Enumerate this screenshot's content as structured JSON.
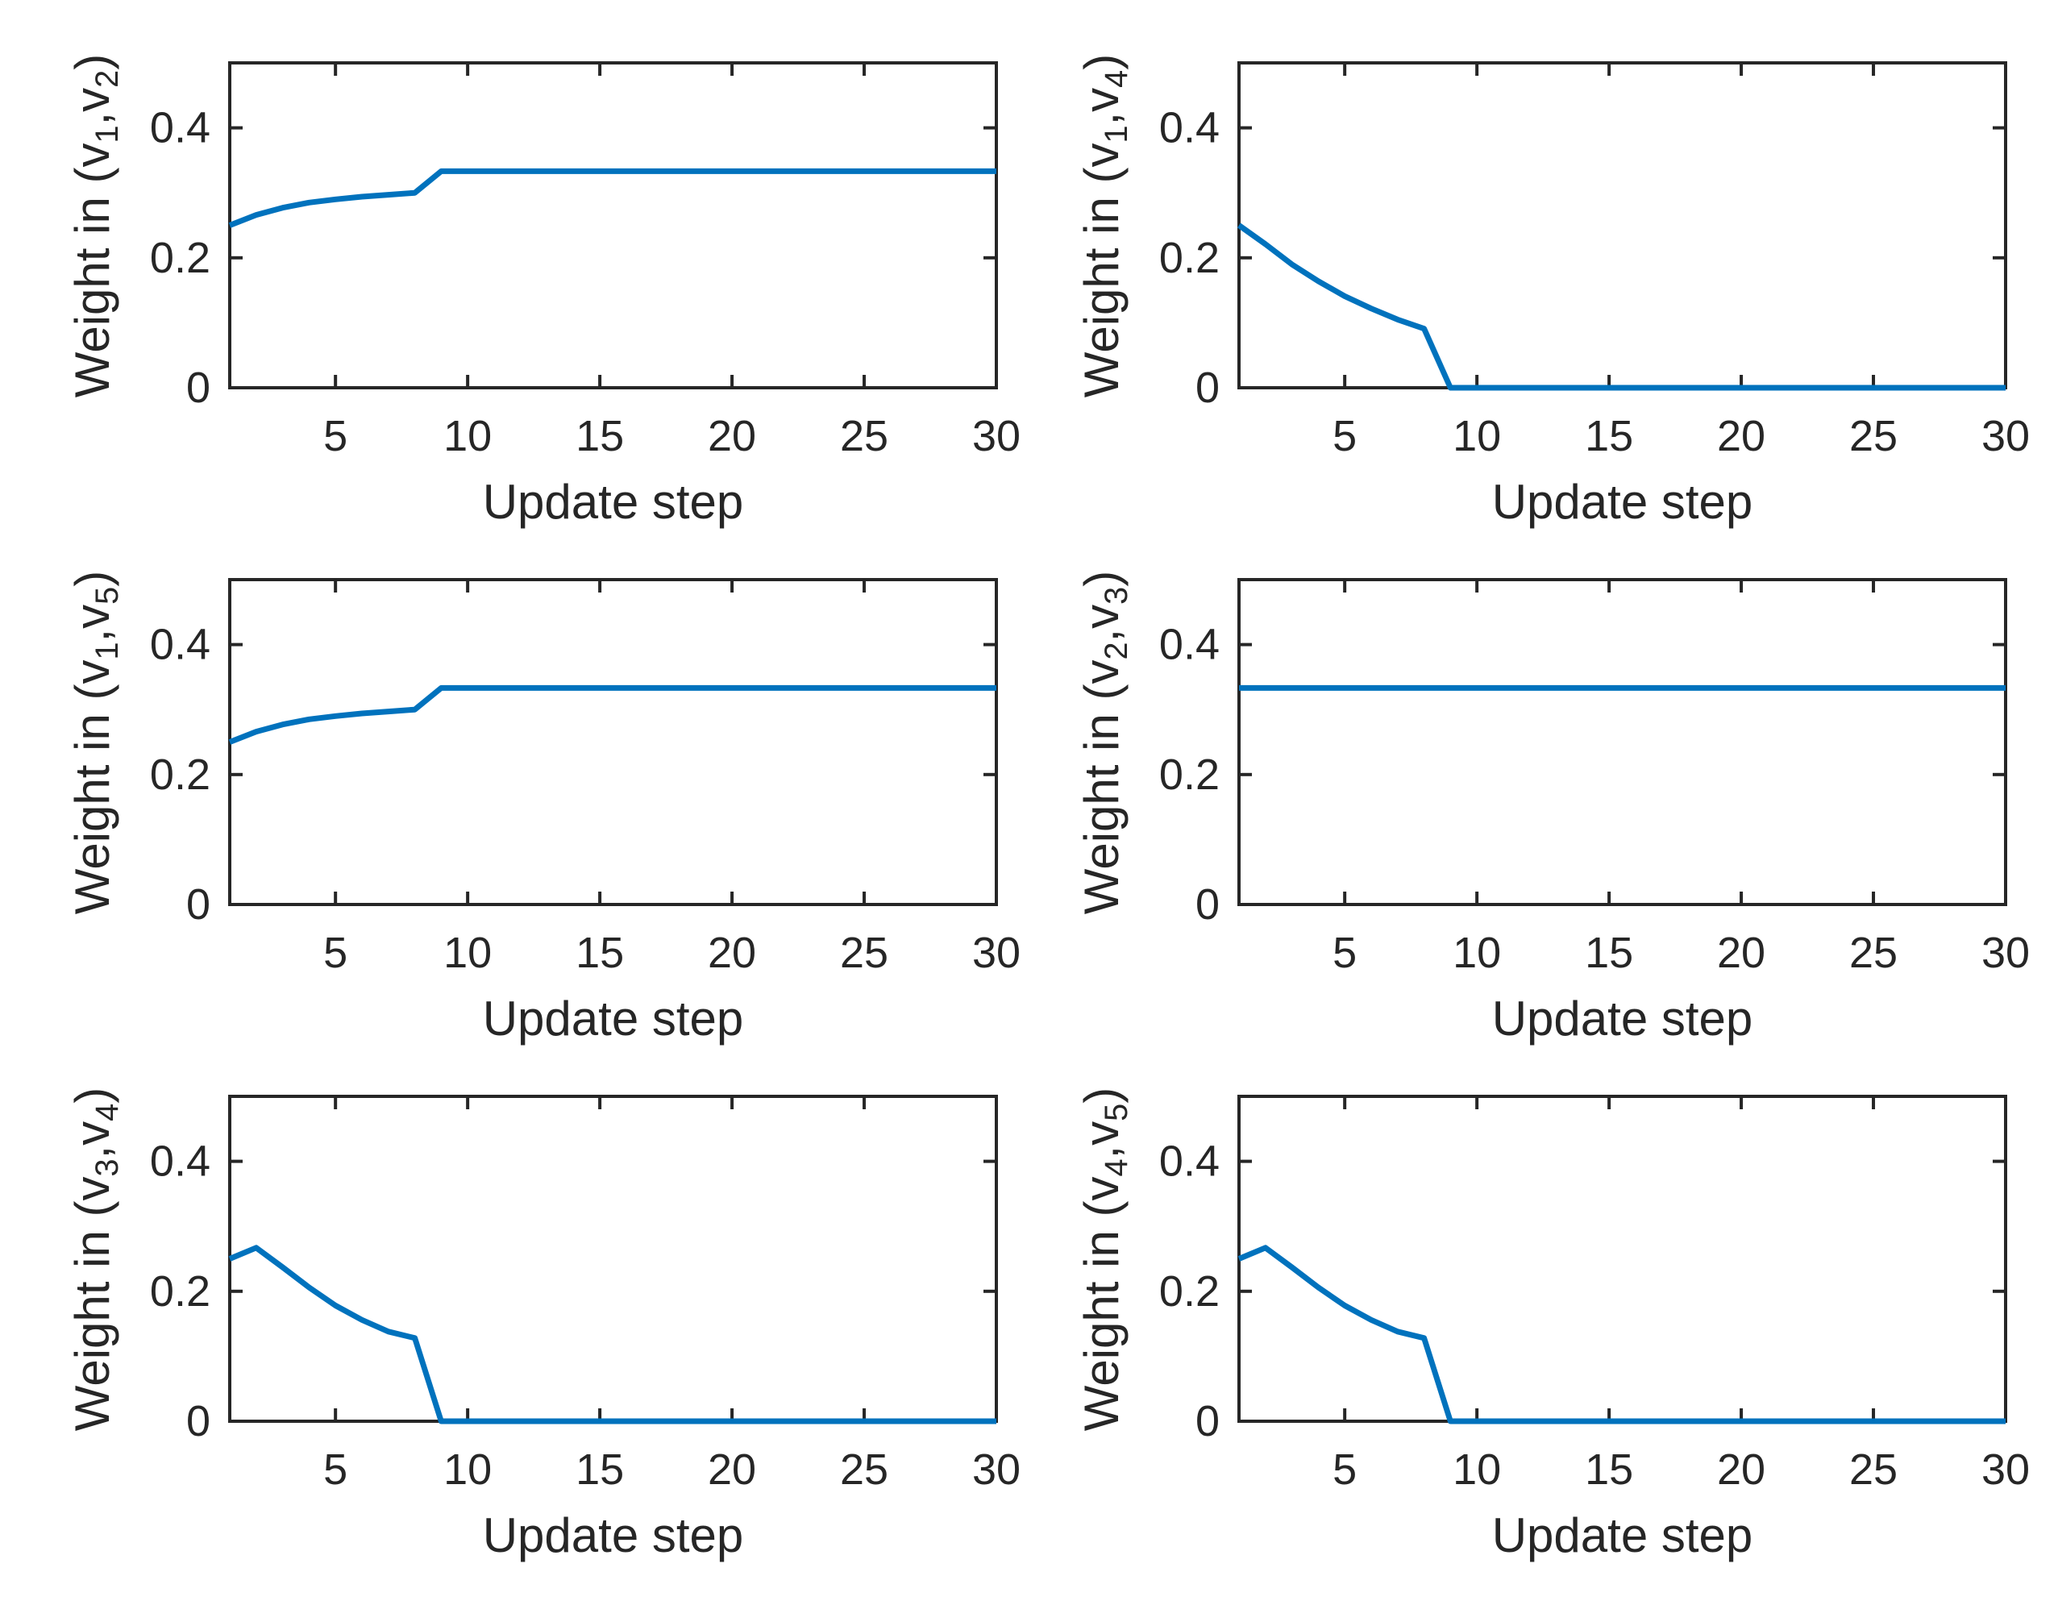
{
  "colors": {
    "line": "#0072bd",
    "axis": "#262626",
    "text": "#262626",
    "background": "#ffffff"
  },
  "chart_data": [
    {
      "type": "line",
      "ylabel": {
        "pre": "Weight in (v",
        "sub1": "1",
        "mid": ",v",
        "sub2": "2",
        "post": ")"
      },
      "xlabel": "Update step",
      "xlim": [
        1,
        30
      ],
      "ylim": [
        0,
        0.5
      ],
      "xticks": [
        5,
        10,
        15,
        20,
        25,
        30
      ],
      "yticks": [
        0,
        0.2,
        0.4
      ],
      "grid": false,
      "legend": null,
      "x": [
        1,
        2,
        3,
        4,
        5,
        6,
        7,
        8,
        9,
        10,
        11,
        12,
        13,
        14,
        15,
        16,
        17,
        18,
        19,
        20,
        21,
        22,
        23,
        24,
        25,
        26,
        27,
        28,
        29,
        30
      ],
      "y": [
        0.25,
        0.266,
        0.277,
        0.285,
        0.29,
        0.294,
        0.297,
        0.3,
        0.3333,
        0.3333,
        0.3333,
        0.3333,
        0.3333,
        0.3333,
        0.3333,
        0.3333,
        0.3333,
        0.3333,
        0.3333,
        0.3333,
        0.3333,
        0.3333,
        0.3333,
        0.3333,
        0.3333,
        0.3333,
        0.3333,
        0.3333,
        0.3333,
        0.3333
      ]
    },
    {
      "type": "line",
      "ylabel": {
        "pre": "Weight in (v",
        "sub1": "1",
        "mid": ",v",
        "sub2": "4",
        "post": ")"
      },
      "xlabel": "Update step",
      "xlim": [
        1,
        30
      ],
      "ylim": [
        0,
        0.5
      ],
      "xticks": [
        5,
        10,
        15,
        20,
        25,
        30
      ],
      "yticks": [
        0,
        0.2,
        0.4
      ],
      "grid": false,
      "legend": null,
      "x": [
        1,
        2,
        3,
        4,
        5,
        6,
        7,
        8,
        9,
        10,
        11,
        12,
        13,
        14,
        15,
        16,
        17,
        18,
        19,
        20,
        21,
        22,
        23,
        24,
        25,
        26,
        27,
        28,
        29,
        30
      ],
      "y": [
        0.25,
        0.221,
        0.19,
        0.164,
        0.141,
        0.122,
        0.105,
        0.091,
        0,
        0,
        0,
        0,
        0,
        0,
        0,
        0,
        0,
        0,
        0,
        0,
        0,
        0,
        0,
        0,
        0,
        0,
        0,
        0,
        0,
        0
      ]
    },
    {
      "type": "line",
      "ylabel": {
        "pre": "Weight in (v",
        "sub1": "1",
        "mid": ",v",
        "sub2": "5",
        "post": ")"
      },
      "xlabel": "Update step",
      "xlim": [
        1,
        30
      ],
      "ylim": [
        0,
        0.5
      ],
      "xticks": [
        5,
        10,
        15,
        20,
        25,
        30
      ],
      "yticks": [
        0,
        0.2,
        0.4
      ],
      "grid": false,
      "legend": null,
      "x": [
        1,
        2,
        3,
        4,
        5,
        6,
        7,
        8,
        9,
        10,
        11,
        12,
        13,
        14,
        15,
        16,
        17,
        18,
        19,
        20,
        21,
        22,
        23,
        24,
        25,
        26,
        27,
        28,
        29,
        30
      ],
      "y": [
        0.25,
        0.266,
        0.277,
        0.285,
        0.29,
        0.294,
        0.297,
        0.3,
        0.3333,
        0.3333,
        0.3333,
        0.3333,
        0.3333,
        0.3333,
        0.3333,
        0.3333,
        0.3333,
        0.3333,
        0.3333,
        0.3333,
        0.3333,
        0.3333,
        0.3333,
        0.3333,
        0.3333,
        0.3333,
        0.3333,
        0.3333,
        0.3333,
        0.3333
      ]
    },
    {
      "type": "line",
      "ylabel": {
        "pre": "Weight in (v",
        "sub1": "2",
        "mid": ",v",
        "sub2": "3",
        "post": ")"
      },
      "xlabel": "Update step",
      "xlim": [
        1,
        30
      ],
      "ylim": [
        0,
        0.5
      ],
      "xticks": [
        5,
        10,
        15,
        20,
        25,
        30
      ],
      "yticks": [
        0,
        0.2,
        0.4
      ],
      "grid": false,
      "legend": null,
      "x": [
        1,
        2,
        3,
        4,
        5,
        6,
        7,
        8,
        9,
        10,
        11,
        12,
        13,
        14,
        15,
        16,
        17,
        18,
        19,
        20,
        21,
        22,
        23,
        24,
        25,
        26,
        27,
        28,
        29,
        30
      ],
      "y": [
        0.3333,
        0.3333,
        0.3333,
        0.3333,
        0.3333,
        0.3333,
        0.3333,
        0.3333,
        0.3333,
        0.3333,
        0.3333,
        0.3333,
        0.3333,
        0.3333,
        0.3333,
        0.3333,
        0.3333,
        0.3333,
        0.3333,
        0.3333,
        0.3333,
        0.3333,
        0.3333,
        0.3333,
        0.3333,
        0.3333,
        0.3333,
        0.3333,
        0.3333,
        0.3333
      ]
    },
    {
      "type": "line",
      "ylabel": {
        "pre": "Weight in (v",
        "sub1": "3",
        "mid": ",v",
        "sub2": "4",
        "post": ")"
      },
      "xlabel": "Update step",
      "xlim": [
        1,
        30
      ],
      "ylim": [
        0,
        0.5
      ],
      "xticks": [
        5,
        10,
        15,
        20,
        25,
        30
      ],
      "yticks": [
        0,
        0.2,
        0.4
      ],
      "grid": false,
      "legend": null,
      "x": [
        1,
        2,
        3,
        4,
        5,
        6,
        7,
        8,
        9,
        10,
        11,
        12,
        13,
        14,
        15,
        16,
        17,
        18,
        19,
        20,
        21,
        22,
        23,
        24,
        25,
        26,
        27,
        28,
        29,
        30
      ],
      "y": [
        0.25,
        0.267,
        0.237,
        0.206,
        0.178,
        0.156,
        0.138,
        0.128,
        0,
        0,
        0,
        0,
        0,
        0,
        0,
        0,
        0,
        0,
        0,
        0,
        0,
        0,
        0,
        0,
        0,
        0,
        0,
        0,
        0,
        0
      ]
    },
    {
      "type": "line",
      "ylabel": {
        "pre": "Weight in (v",
        "sub1": "4",
        "mid": ",v",
        "sub2": "5",
        "post": ")"
      },
      "xlabel": "Update step",
      "xlim": [
        1,
        30
      ],
      "ylim": [
        0,
        0.5
      ],
      "xticks": [
        5,
        10,
        15,
        20,
        25,
        30
      ],
      "yticks": [
        0,
        0.2,
        0.4
      ],
      "grid": false,
      "legend": null,
      "x": [
        1,
        2,
        3,
        4,
        5,
        6,
        7,
        8,
        9,
        10,
        11,
        12,
        13,
        14,
        15,
        16,
        17,
        18,
        19,
        20,
        21,
        22,
        23,
        24,
        25,
        26,
        27,
        28,
        29,
        30
      ],
      "y": [
        0.25,
        0.267,
        0.237,
        0.206,
        0.178,
        0.156,
        0.138,
        0.128,
        0,
        0,
        0,
        0,
        0,
        0,
        0,
        0,
        0,
        0,
        0,
        0,
        0,
        0,
        0,
        0,
        0,
        0,
        0,
        0,
        0,
        0
      ]
    }
  ]
}
